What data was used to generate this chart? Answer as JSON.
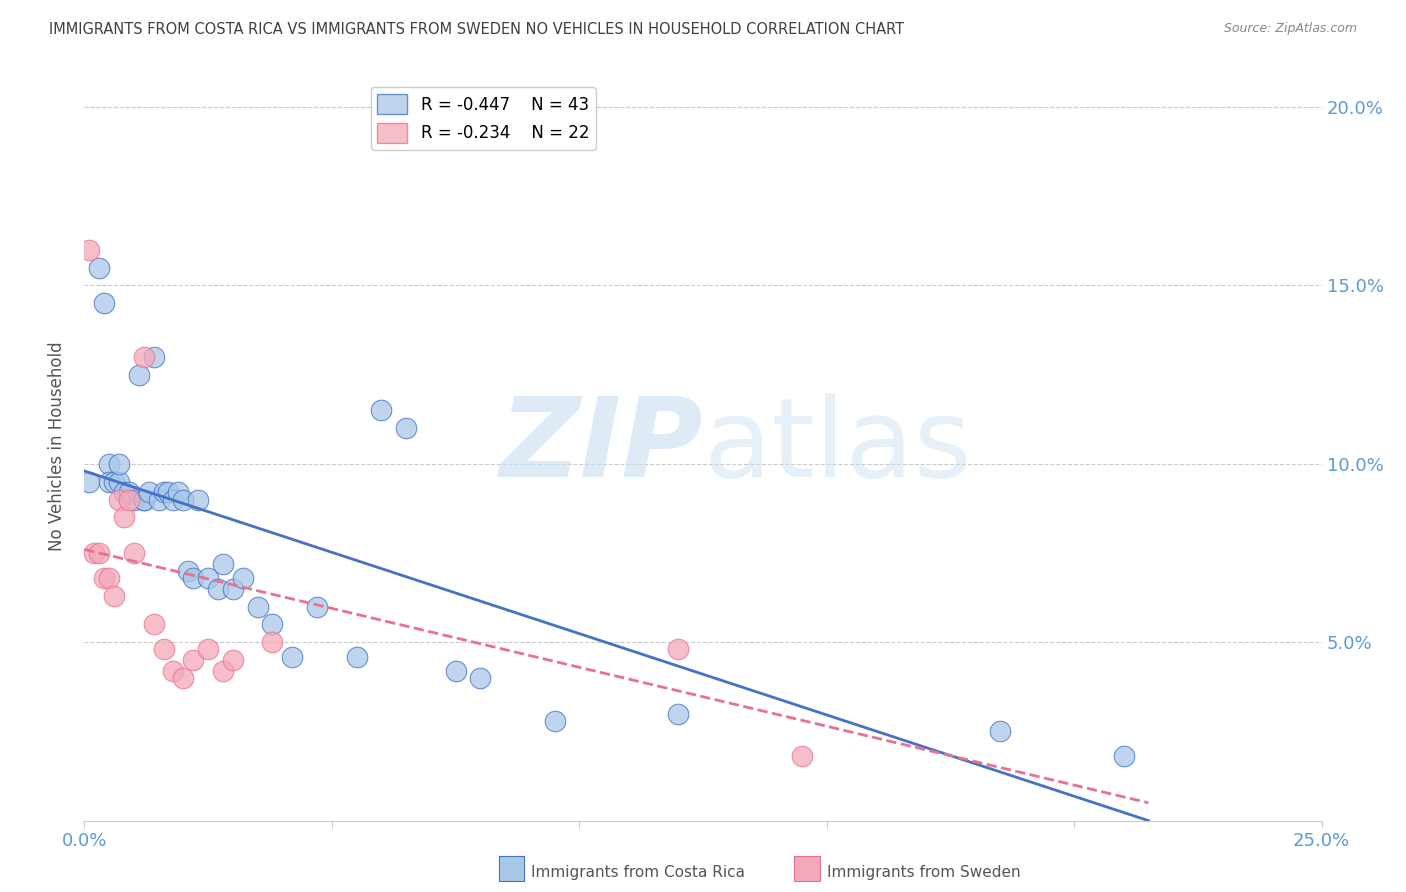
{
  "title": "IMMIGRANTS FROM COSTA RICA VS IMMIGRANTS FROM SWEDEN NO VEHICLES IN HOUSEHOLD CORRELATION CHART",
  "source": "Source: ZipAtlas.com",
  "ylabel": "No Vehicles in Household",
  "xlim": [
    0.0,
    0.25
  ],
  "ylim": [
    0.0,
    0.21
  ],
  "x_ticks": [
    0.0,
    0.05,
    0.1,
    0.15,
    0.2,
    0.25
  ],
  "x_tick_labels": [
    "0.0%",
    "",
    "",
    "",
    "",
    "25.0%"
  ],
  "y_ticks": [
    0.0,
    0.05,
    0.1,
    0.15,
    0.2
  ],
  "legend1_R": "R = -0.447",
  "legend1_N": "N = 43",
  "legend2_R": "R = -0.234",
  "legend2_N": "N = 22",
  "color_blue": "#A8C8E8",
  "color_pink": "#F4A8B8",
  "color_blue_line": "#4472C4",
  "color_pink_line": "#E87090",
  "color_axis_labels": "#5B9BD5",
  "color_title": "#404040",
  "color_grid": "#CCCCCC",
  "costa_rica_x": [
    0.001,
    0.003,
    0.004,
    0.005,
    0.005,
    0.006,
    0.007,
    0.007,
    0.008,
    0.009,
    0.01,
    0.011,
    0.012,
    0.012,
    0.013,
    0.014,
    0.015,
    0.016,
    0.017,
    0.018,
    0.019,
    0.02,
    0.021,
    0.022,
    0.023,
    0.025,
    0.027,
    0.028,
    0.03,
    0.032,
    0.035,
    0.038,
    0.042,
    0.047,
    0.055,
    0.06,
    0.065,
    0.075,
    0.08,
    0.095,
    0.12,
    0.185,
    0.21
  ],
  "costa_rica_y": [
    0.095,
    0.155,
    0.145,
    0.1,
    0.095,
    0.095,
    0.095,
    0.1,
    0.092,
    0.092,
    0.09,
    0.125,
    0.09,
    0.09,
    0.092,
    0.13,
    0.09,
    0.092,
    0.092,
    0.09,
    0.092,
    0.09,
    0.07,
    0.068,
    0.09,
    0.068,
    0.065,
    0.072,
    0.065,
    0.068,
    0.06,
    0.055,
    0.046,
    0.06,
    0.046,
    0.115,
    0.11,
    0.042,
    0.04,
    0.028,
    0.03,
    0.025,
    0.018
  ],
  "sweden_x": [
    0.001,
    0.002,
    0.003,
    0.004,
    0.005,
    0.006,
    0.007,
    0.008,
    0.009,
    0.01,
    0.012,
    0.014,
    0.016,
    0.018,
    0.02,
    0.022,
    0.025,
    0.028,
    0.03,
    0.038,
    0.12,
    0.145
  ],
  "sweden_y": [
    0.16,
    0.075,
    0.075,
    0.068,
    0.068,
    0.063,
    0.09,
    0.085,
    0.09,
    0.075,
    0.13,
    0.055,
    0.048,
    0.042,
    0.04,
    0.045,
    0.048,
    0.042,
    0.045,
    0.05,
    0.048,
    0.018
  ],
  "blue_line_x": [
    0.0,
    0.215
  ],
  "blue_line_y": [
    0.098,
    0.0
  ],
  "pink_line_x": [
    0.0,
    0.215
  ],
  "pink_line_y": [
    0.076,
    0.005
  ],
  "figsize": [
    14.06,
    8.92
  ],
  "dpi": 100
}
